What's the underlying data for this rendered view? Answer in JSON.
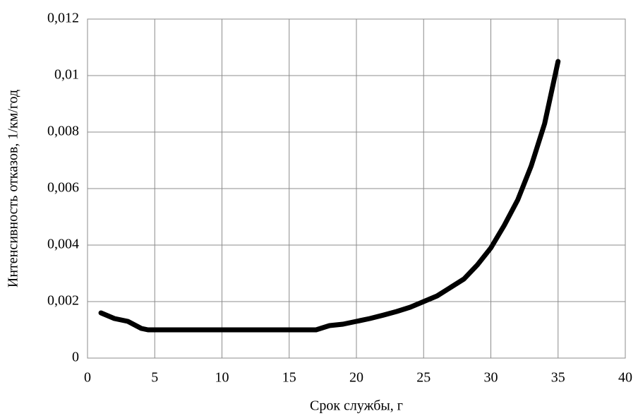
{
  "chart_data": {
    "type": "line",
    "x_label": "Срок службы, г",
    "y_label": "Интенсивность отказов, 1/км/год",
    "x": [
      1,
      2,
      3,
      4,
      4.5,
      5,
      6,
      7,
      8,
      9,
      10,
      11,
      12,
      13,
      14,
      15,
      16,
      17,
      18,
      19,
      20,
      21,
      22,
      23,
      24,
      25,
      26,
      27,
      28,
      29,
      30,
      31,
      32,
      33,
      34,
      35
    ],
    "series": [
      {
        "color": "#000000",
        "values": [
          0.0016,
          0.0014,
          0.0013,
          0.00105,
          0.001,
          0.001,
          0.001,
          0.001,
          0.001,
          0.001,
          0.001,
          0.001,
          0.001,
          0.001,
          0.001,
          0.001,
          0.001,
          0.001,
          0.00115,
          0.0012,
          0.0013,
          0.0014,
          0.00152,
          0.00165,
          0.0018,
          0.002,
          0.0022,
          0.0025,
          0.0028,
          0.0033,
          0.0039,
          0.0047,
          0.0056,
          0.0068,
          0.0083,
          0.0105
        ]
      }
    ],
    "xlim": [
      0,
      40
    ],
    "xticks": [
      0,
      5,
      10,
      15,
      20,
      25,
      30,
      35,
      40
    ],
    "ylim": [
      0,
      0.012
    ],
    "yticks": [
      0,
      {
        "value": 0.002,
        "label": "0,002"
      },
      {
        "value": 0.004,
        "label": "0,004"
      },
      {
        "value": 0.006,
        "label": "0,006"
      },
      {
        "value": 0.008,
        "label": "0,008"
      },
      {
        "value": 0.01,
        "label": "0,01"
      },
      {
        "value": 0.012,
        "label": "0,012"
      }
    ],
    "grid": true
  }
}
